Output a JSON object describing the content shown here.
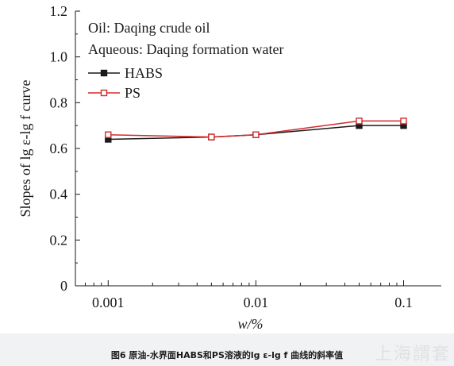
{
  "chart_data": {
    "type": "line",
    "x_scale": "log",
    "x": [
      0.001,
      0.005,
      0.01,
      0.05,
      0.1
    ],
    "x_ticks": [
      0.001,
      0.01,
      0.1
    ],
    "x_tick_labels": [
      "0.001",
      "0.01",
      "0.1"
    ],
    "xlim": [
      0.0006,
      0.18
    ],
    "ylim": [
      0,
      1.2
    ],
    "y_ticks": [
      0,
      0.2,
      0.4,
      0.6,
      0.8,
      1.0,
      1.2
    ],
    "y_tick_labels": [
      "0",
      "0.2",
      "0.4",
      "0.6",
      "0.8",
      "1.0",
      "1.2"
    ],
    "xlabel": "w/%",
    "ylabel": "Slopes of lg ε-lg f curve",
    "annotations": [
      "Oil: Daqing crude oil",
      "Aqueous: Daqing formation water"
    ],
    "legend_position": "top-left",
    "grid": false,
    "series": [
      {
        "name": "HABS",
        "values": [
          0.64,
          0.65,
          0.66,
          0.7,
          0.7
        ],
        "color": "#1a1a1a",
        "marker": "filled-square"
      },
      {
        "name": "PS",
        "values": [
          0.66,
          0.65,
          0.66,
          0.72,
          0.72
        ],
        "color": "#d42a2a",
        "marker": "open-square"
      }
    ]
  },
  "caption": "图6 原油-水界面HABS和PS溶液的lg ε-lg f 曲线的斜率值",
  "watermark": "上海謂套"
}
